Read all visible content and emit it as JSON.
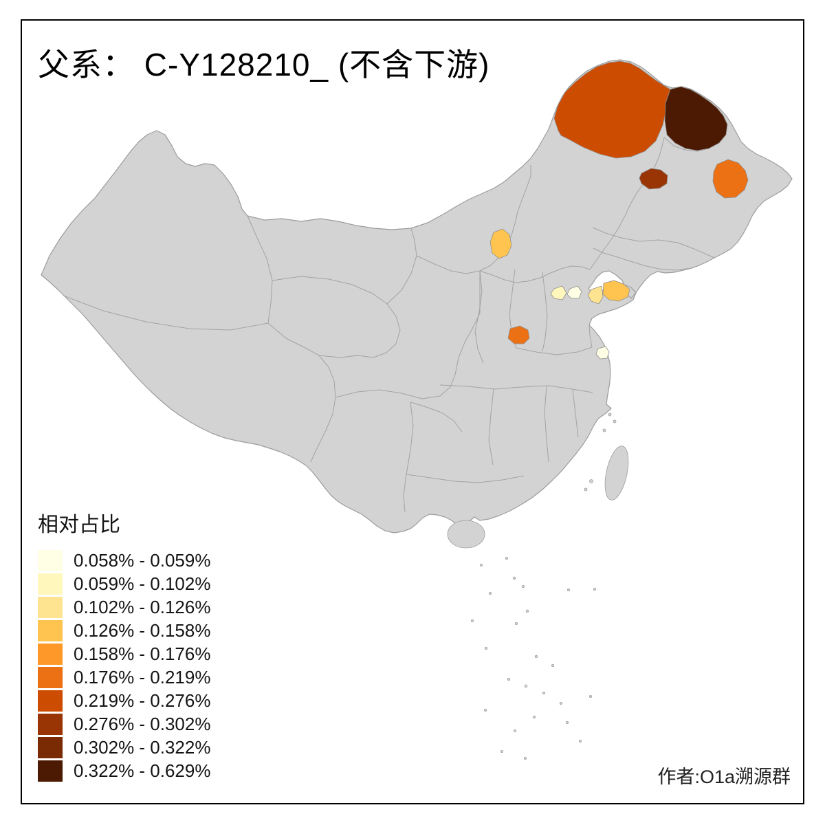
{
  "title": "父系： C-Y128210_ (不含下游)",
  "legend": {
    "title": "相对占比",
    "items": [
      {
        "label": "0.058% - 0.059%",
        "color": "#ffffe5"
      },
      {
        "label": "0.059% - 0.102%",
        "color": "#fff7bc"
      },
      {
        "label": "0.102% - 0.126%",
        "color": "#fee391"
      },
      {
        "label": "0.126% - 0.158%",
        "color": "#fec44f"
      },
      {
        "label": "0.158% - 0.176%",
        "color": "#fe9929"
      },
      {
        "label": "0.176% - 0.219%",
        "color": "#ec7014"
      },
      {
        "label": "0.219% - 0.276%",
        "color": "#cc4c02"
      },
      {
        "label": "0.276% - 0.302%",
        "color": "#993404"
      },
      {
        "label": "0.302% - 0.322%",
        "color": "#7a2b04"
      },
      {
        "label": "0.322% - 0.629%",
        "color": "#4c1a03"
      }
    ]
  },
  "credit": "作者:O1a溯源群",
  "map": {
    "base_fill": "#d3d3d3",
    "border_color": "#a3a3a3",
    "highlight_regions": [
      {
        "color": "#cc4c02"
      },
      {
        "color": "#4c1a03"
      },
      {
        "color": "#993404"
      },
      {
        "color": "#ec7014"
      },
      {
        "color": "#fec44f"
      },
      {
        "color": "#fec44f"
      },
      {
        "color": "#fee391"
      },
      {
        "color": "#fff7bc"
      },
      {
        "color": "#ffffe5"
      },
      {
        "color": "#ec7014"
      },
      {
        "color": "#ffffe5"
      }
    ]
  }
}
